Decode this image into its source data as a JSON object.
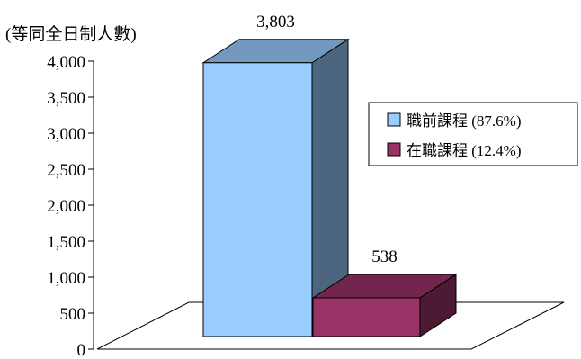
{
  "chart_data": {
    "type": "bar",
    "style": "3d",
    "unit_label": "(等同全日制人數)",
    "categories": [
      "職前課程 (87.6%)",
      "在職課程 (12.4%)"
    ],
    "series": [
      {
        "name": "職前課程 (87.6%)",
        "color": "#99ccff",
        "value": 3803,
        "data_label": "3,803"
      },
      {
        "name": "在職課程 (12.4%)",
        "color": "#993366",
        "value": 538,
        "data_label": "538"
      }
    ],
    "ylim": [
      0,
      4000
    ],
    "y_ticks": [
      0,
      500,
      1000,
      1500,
      2000,
      2500,
      3000,
      3500,
      4000
    ],
    "y_tick_labels": [
      "0",
      "500",
      "1,000",
      "1,500",
      "2,000",
      "2,500",
      "3,000",
      "3,500",
      "4,000"
    ],
    "grid": false,
    "legend": {
      "position": "right"
    }
  }
}
